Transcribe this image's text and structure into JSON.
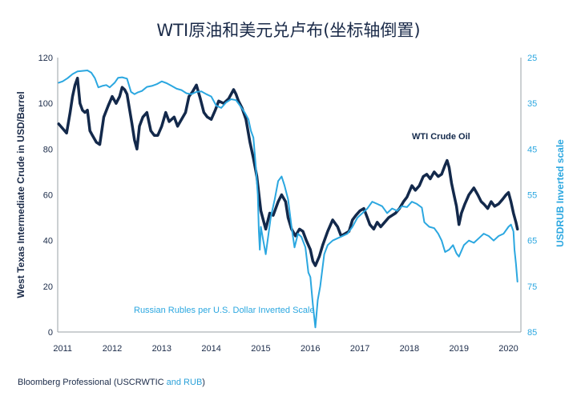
{
  "title": "WTI原油和美元兑卢布(坐标轴倒置)",
  "source": {
    "prefix": "Bloomberg Professional (USCRWTIC ",
    "highlight": "and RUB",
    "suffix": ")"
  },
  "colors": {
    "wti": "#13294b",
    "rub": "#2ba7e0",
    "axis_left": "#1a2a48",
    "axis_right": "#2ba7e0",
    "frame": "#9aa0a6"
  },
  "chart_data": {
    "type": "line",
    "title": "WTI原油和美元兑卢布(坐标轴倒置)",
    "xlabel": "",
    "ylabel": "West Texas Intermediate Crude in USD/Barrel",
    "y2label": "USDRUB Inverted scale",
    "x_ticks": [
      "2011",
      "2012",
      "2013",
      "2014",
      "2015",
      "2016",
      "2017",
      "2018",
      "2019",
      "2020"
    ],
    "y_ticks": [
      "0",
      "20",
      "40",
      "60",
      "80",
      "100",
      "120"
    ],
    "y2_ticks": [
      "25",
      "35",
      "45",
      "55",
      "65",
      "75",
      "85"
    ],
    "xlim": [
      2010.9,
      2020.25
    ],
    "ylim": [
      0,
      120
    ],
    "y2lim": [
      85,
      25
    ],
    "y2_inverted": true,
    "grid": false,
    "annotations": [
      {
        "text": "WTI Crude Oil",
        "series": "wti"
      },
      {
        "text": "Russian Rubles per U.S. Dollar Inverted Scale",
        "series": "rub"
      }
    ],
    "series": [
      {
        "key": "wti",
        "name": "WTI Crude Oil",
        "axis": "left",
        "x": [
          2010.92,
          2011.0,
          2011.08,
          2011.15,
          2011.2,
          2011.25,
          2011.3,
          2011.35,
          2011.4,
          2011.45,
          2011.5,
          2011.55,
          2011.6,
          2011.68,
          2011.75,
          2011.83,
          2011.92,
          2012.0,
          2012.08,
          2012.15,
          2012.2,
          2012.25,
          2012.3,
          2012.4,
          2012.45,
          2012.5,
          2012.55,
          2012.62,
          2012.7,
          2012.78,
          2012.85,
          2012.92,
          2013.0,
          2013.08,
          2013.15,
          2013.25,
          2013.32,
          2013.4,
          2013.48,
          2013.55,
          2013.62,
          2013.7,
          2013.78,
          2013.85,
          2013.92,
          2014.0,
          2014.08,
          2014.15,
          2014.25,
          2014.35,
          2014.45,
          2014.5,
          2014.55,
          2014.62,
          2014.7,
          2014.78,
          2014.85,
          2014.92,
          2015.0,
          2015.05,
          2015.1,
          2015.18,
          2015.25,
          2015.35,
          2015.42,
          2015.5,
          2015.55,
          2015.62,
          2015.7,
          2015.78,
          2015.85,
          2015.92,
          2016.0,
          2016.05,
          2016.1,
          2016.18,
          2016.25,
          2016.35,
          2016.45,
          2016.55,
          2016.62,
          2016.7,
          2016.78,
          2016.85,
          2016.92,
          2017.0,
          2017.08,
          2017.15,
          2017.2,
          2017.28,
          2017.35,
          2017.42,
          2017.5,
          2017.58,
          2017.65,
          2017.72,
          2017.8,
          2017.88,
          2017.95,
          2018.05,
          2018.12,
          2018.2,
          2018.28,
          2018.35,
          2018.42,
          2018.5,
          2018.58,
          2018.65,
          2018.72,
          2018.76,
          2018.8,
          2018.85,
          2018.9,
          2018.95,
          2019.0,
          2019.05,
          2019.12,
          2019.2,
          2019.3,
          2019.38,
          2019.45,
          2019.5,
          2019.58,
          2019.65,
          2019.72,
          2019.8,
          2019.88,
          2019.95,
          2020.0,
          2020.05,
          2020.1,
          2020.15,
          2020.18
        ],
        "values": [
          91,
          89,
          87,
          96,
          103,
          108,
          111,
          100,
          97,
          96,
          97,
          88,
          86,
          83,
          82,
          94,
          99,
          103,
          100,
          103,
          107,
          106,
          104,
          91,
          84,
          80,
          90,
          94,
          96,
          88,
          86,
          86,
          90,
          96,
          92,
          94,
          90,
          93,
          96,
          103,
          105,
          108,
          102,
          96,
          94,
          93,
          97,
          101,
          100,
          102,
          106,
          104,
          101,
          98,
          93,
          83,
          76,
          68,
          53,
          49,
          45,
          52,
          51,
          57,
          60,
          57,
          50,
          45,
          42,
          45,
          44,
          40,
          36,
          31,
          29,
          33,
          38,
          44,
          49,
          46,
          42,
          43,
          44,
          49,
          51,
          53,
          54,
          50,
          47,
          45,
          48,
          46,
          48,
          50,
          51,
          52,
          54,
          57,
          59,
          64,
          62,
          64,
          68,
          69,
          67,
          70,
          68,
          69,
          73,
          75,
          72,
          65,
          60,
          55,
          47,
          52,
          56,
          60,
          63,
          60,
          57,
          56,
          54,
          57,
          55,
          56,
          58,
          60,
          61,
          57,
          52,
          48,
          45
        ]
      },
      {
        "key": "rub",
        "name": "Russian Rubles per U.S. Dollar Inverted Scale",
        "axis": "right",
        "x": [
          2010.92,
          2011.0,
          2011.1,
          2011.2,
          2011.3,
          2011.4,
          2011.5,
          2011.58,
          2011.65,
          2011.72,
          2011.8,
          2011.88,
          2011.95,
          2012.05,
          2012.12,
          2012.2,
          2012.3,
          2012.38,
          2012.45,
          2012.52,
          2012.6,
          2012.7,
          2012.8,
          2012.9,
          2013.0,
          2013.1,
          2013.2,
          2013.3,
          2013.4,
          2013.5,
          2013.6,
          2013.7,
          2013.8,
          2013.9,
          2014.0,
          2014.1,
          2014.2,
          2014.3,
          2014.4,
          2014.5,
          2014.6,
          2014.68,
          2014.75,
          2014.8,
          2014.85,
          2014.9,
          2014.94,
          2014.96,
          2014.98,
          2015.0,
          2015.05,
          2015.1,
          2015.15,
          2015.2,
          2015.28,
          2015.35,
          2015.42,
          2015.48,
          2015.55,
          2015.62,
          2015.68,
          2015.75,
          2015.82,
          2015.9,
          2015.96,
          2016.0,
          2016.05,
          2016.1,
          2016.15,
          2016.2,
          2016.28,
          2016.35,
          2016.45,
          2016.55,
          2016.65,
          2016.75,
          2016.85,
          2016.95,
          2017.05,
          2017.15,
          2017.25,
          2017.35,
          2017.45,
          2017.55,
          2017.65,
          2017.75,
          2017.85,
          2017.95,
          2018.05,
          2018.15,
          2018.25,
          2018.3,
          2018.4,
          2018.5,
          2018.58,
          2018.65,
          2018.72,
          2018.8,
          2018.88,
          2018.95,
          2019.0,
          2019.1,
          2019.2,
          2019.3,
          2019.4,
          2019.5,
          2019.6,
          2019.7,
          2019.8,
          2019.9,
          2020.0,
          2020.05,
          2020.1,
          2020.12,
          2020.15,
          2020.18
        ],
        "values": [
          30.5,
          30.2,
          29.5,
          28.6,
          28.0,
          27.9,
          27.8,
          28.3,
          29.5,
          31.5,
          31.2,
          31.0,
          31.5,
          30.5,
          29.4,
          29.3,
          29.6,
          32.5,
          33.0,
          32.6,
          32.3,
          31.4,
          31.2,
          30.8,
          30.2,
          30.6,
          31.2,
          31.8,
          32.1,
          32.8,
          33.0,
          32.5,
          32.4,
          33.0,
          33.5,
          35.5,
          36.0,
          34.8,
          34.1,
          34.3,
          35.8,
          37.1,
          38.5,
          41.0,
          42.5,
          49.0,
          55.0,
          63.0,
          67.0,
          62.0,
          65.0,
          68.0,
          64.0,
          60.0,
          56.0,
          52.0,
          51.0,
          53.0,
          56.0,
          62.0,
          66.5,
          63.5,
          64.2,
          66.5,
          72.0,
          73.0,
          79.0,
          84.0,
          78.0,
          75.0,
          68.0,
          66.0,
          65.0,
          64.5,
          64.0,
          63.5,
          62.0,
          60.0,
          59.0,
          58.0,
          56.5,
          57.0,
          57.5,
          59.0,
          58.0,
          58.5,
          57.5,
          57.7,
          56.5,
          57.0,
          57.8,
          61.0,
          62.0,
          62.3,
          63.5,
          65.0,
          67.5,
          67.0,
          66.0,
          67.8,
          68.5,
          66.0,
          65.0,
          65.5,
          64.5,
          63.5,
          64.0,
          65.0,
          64.0,
          63.5,
          62.0,
          61.5,
          63.0,
          67.0,
          70.0,
          74.0
        ]
      }
    ]
  }
}
